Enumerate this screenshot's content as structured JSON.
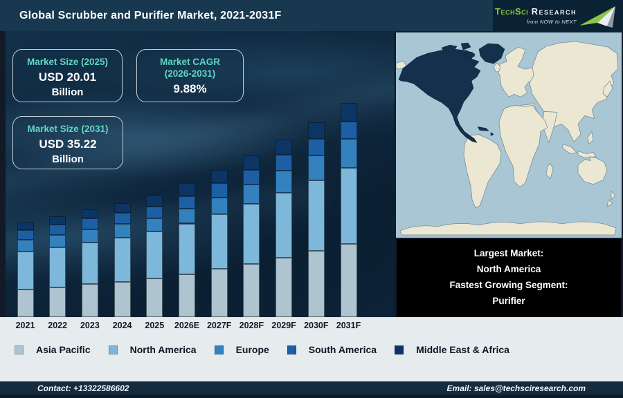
{
  "header": {
    "title": "Global Scrubber and Purifier Market, 2021-2031F",
    "logo": {
      "brand": "TechSci",
      "brand2": "Research",
      "tagline": "from NOW to NEXT"
    }
  },
  "stat_boxes": [
    {
      "title": "Market Size (2025)",
      "title2": "",
      "value": "USD 20.01",
      "unit": "Billion"
    },
    {
      "title": "Market CAGR",
      "title2": "(2026-2031)",
      "value": "9.88%",
      "unit": ""
    },
    {
      "title": "Market Size (2031)",
      "title2": "",
      "value": "USD 35.22",
      "unit": "Billion"
    }
  ],
  "chart_data": {
    "type": "bar",
    "stacked": true,
    "title": "Global Scrubber and Purifier Market, 2021-2031F",
    "unit": "USD Billion",
    "categories": [
      "2021",
      "2022",
      "2023",
      "2024",
      "2025",
      "2026E",
      "2027F",
      "2028F",
      "2029F",
      "2030F",
      "2031F"
    ],
    "series": [
      {
        "name": "Asia Pacific",
        "color": "#aec4cf",
        "values": [
          4.5,
          4.9,
          5.4,
          5.8,
          6.4,
          7.1,
          7.9,
          8.8,
          9.8,
          10.9,
          12.0
        ]
      },
      {
        "name": "North America",
        "color": "#7db7d9",
        "values": [
          6.3,
          6.6,
          6.9,
          7.3,
          7.7,
          8.3,
          9.0,
          9.8,
          10.7,
          11.6,
          12.5
        ]
      },
      {
        "name": "Europe",
        "color": "#3381bd",
        "values": [
          1.9,
          2.0,
          2.1,
          2.2,
          2.2,
          2.4,
          2.8,
          3.2,
          3.6,
          4.1,
          4.8
        ]
      },
      {
        "name": "South America",
        "color": "#1d5fa5",
        "values": [
          1.6,
          1.7,
          1.8,
          1.9,
          1.9,
          2.1,
          2.3,
          2.4,
          2.6,
          2.7,
          2.9
        ]
      },
      {
        "name": "Middle East & Africa",
        "color": "#0c3565",
        "values": [
          1.3,
          1.4,
          1.5,
          1.6,
          1.8,
          2.1,
          2.2,
          2.4,
          2.5,
          2.8,
          3.0
        ]
      }
    ],
    "annotations": {
      "market_size_2025": "USD 20.01 Billion",
      "market_size_2031": "USD 35.22 Billion",
      "cagr_2026_2031": "9.88%"
    },
    "legend_position": "bottom",
    "gridlines": false,
    "y_axis_visible": false
  },
  "map": {
    "highlighted_region": "North America"
  },
  "info_box": {
    "lines": [
      "Largest Market:",
      "North America",
      "Fastest Growing Segment:",
      "Purifier"
    ]
  },
  "footer": {
    "contact": "Contact: +13322586602",
    "email": "Email: sales@techsciresearch.com"
  },
  "colors": {
    "accent-teal": "#5fd6c4",
    "header-bg": "#17384e",
    "strip-bg": "#e6ebed",
    "footer-bg": "#152c3f",
    "map-ocean": "#a9c6d4",
    "map-land": "#ece7d2",
    "map-highlight": "#14304d",
    "logo-green": "#8dc63f"
  }
}
